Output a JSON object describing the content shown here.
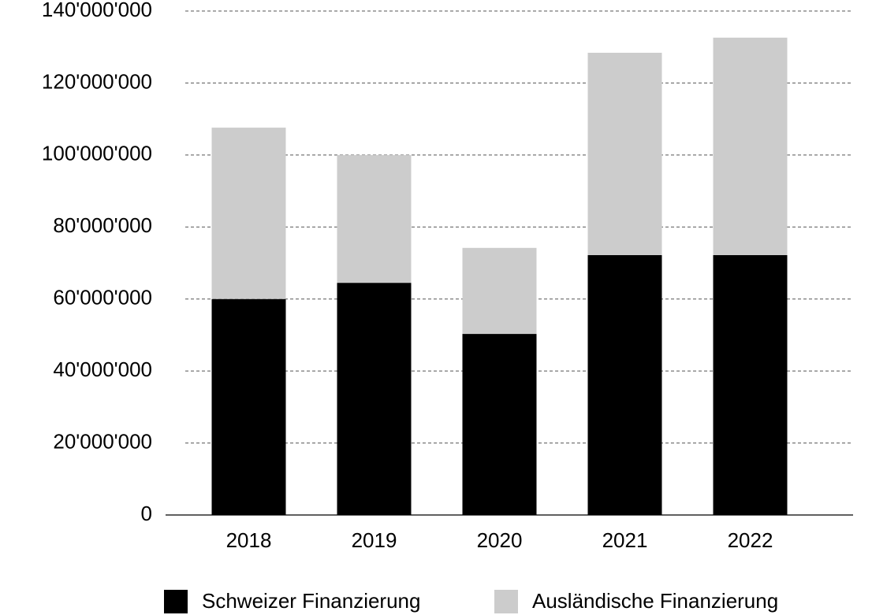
{
  "chart_data": {
    "type": "stacked_bar",
    "categories": [
      "2018",
      "2019",
      "2020",
      "2021",
      "2022"
    ],
    "series": [
      {
        "name": "Schweizer Finanzierung",
        "color": "#000000",
        "values": [
          60000000,
          64500000,
          50300000,
          72200000,
          72200000
        ]
      },
      {
        "name": "Ausländische Finanzierung",
        "color": "#cccccc",
        "values": [
          47600000,
          35500000,
          23900000,
          56200000,
          60400000
        ]
      }
    ],
    "ylim": [
      0,
      140000000
    ],
    "yticks": [
      0,
      {
        "value": 20000000,
        "label": "20'000'000"
      },
      {
        "value": 40000000,
        "label": "40'000'000"
      },
      {
        "value": 60000000,
        "label": "60'000'000"
      },
      {
        "value": 80000000,
        "label": "80'000'000"
      },
      {
        "value": 100000000,
        "label": "100'000'000"
      },
      {
        "value": 120000000,
        "label": "120'000'000"
      },
      {
        "value": 140000000,
        "label": "140'000'000"
      }
    ],
    "grid": true,
    "legend": "bottom"
  }
}
